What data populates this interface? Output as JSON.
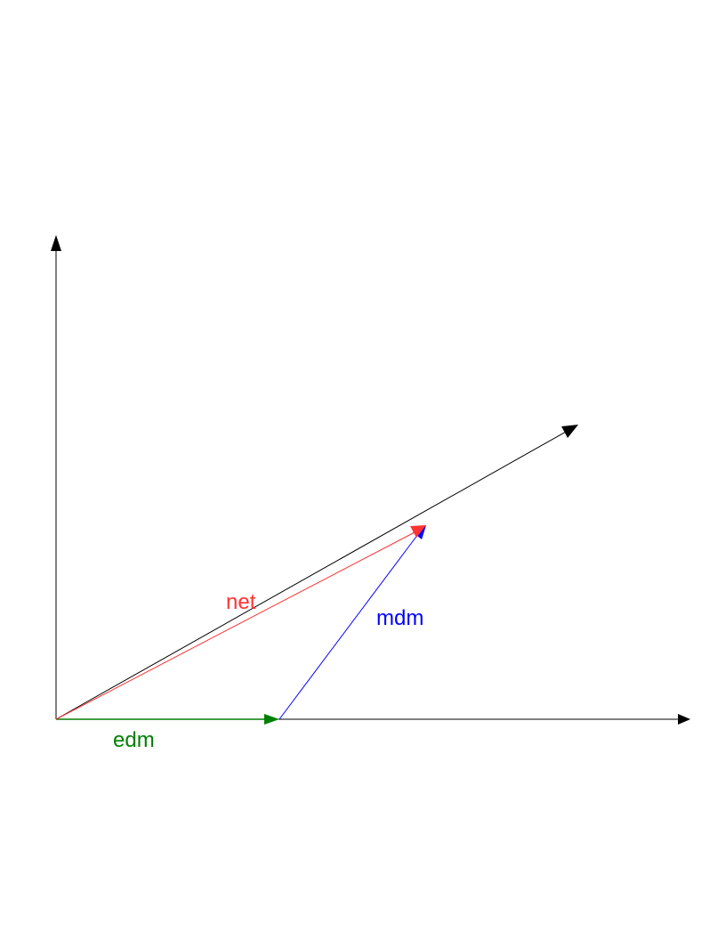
{
  "diagram": {
    "colors": {
      "axis": "#000000",
      "net": "#ff3333",
      "mdm": "#0000ff",
      "edm": "#008000"
    },
    "labels": {
      "net": "net",
      "mdm": "mdm",
      "edm": "edm"
    }
  }
}
